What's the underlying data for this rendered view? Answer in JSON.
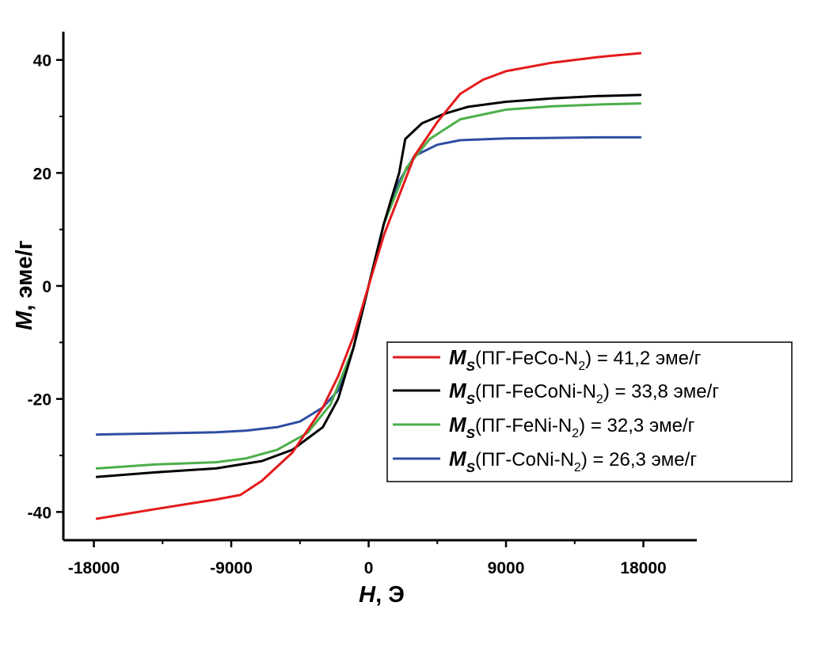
{
  "chart_data": {
    "type": "line",
    "title": "",
    "xlabel": {
      "var": "H",
      "unit": ", Э"
    },
    "ylabel": {
      "var": "M",
      "unit": ", эме/г"
    },
    "xlim": [
      -20000,
      21500
    ],
    "ylim": [
      -45,
      45
    ],
    "xticks": [
      -18000,
      -9000,
      0,
      9000,
      18000
    ],
    "xtick_labels": [
      "-18000",
      "-9000",
      "0",
      "9000",
      "18000"
    ],
    "yticks": [
      -40,
      -20,
      0,
      20,
      40
    ],
    "ytick_labels": [
      "-40",
      "-20",
      "0",
      "20",
      "40"
    ],
    "grid": false,
    "legend_position": "lower-right",
    "series": [
      {
        "color": "#e41a1c",
        "legend": {
          "ms": "M",
          "sub_s": "S",
          "pre": "(ПГ-FeCo-N",
          "sub": "2",
          "post": ") = 41,2 эме/г"
        },
        "x": [
          -17800,
          -14000,
          -10000,
          -8400,
          -7000,
          -5000,
          -3000,
          -2000,
          -1000,
          0,
          1000,
          2000,
          3000,
          4500,
          6000,
          7500,
          9000,
          12000,
          15000,
          17800
        ],
        "y": [
          -41.2,
          -39.5,
          -37.8,
          -37,
          -34.5,
          -29.5,
          -21.5,
          -16,
          -9,
          0,
          9,
          16,
          23,
          29,
          34,
          36.5,
          38,
          39.5,
          40.5,
          41.2
        ]
      },
      {
        "color": "#000000",
        "legend": {
          "ms": "M",
          "sub_s": "S",
          "pre": "(ПГ-FeCoNi-N",
          "sub": "2",
          "post": ") = 33,8 эме/г"
        },
        "x": [
          -17800,
          -14000,
          -10000,
          -7000,
          -5000,
          -3000,
          -2000,
          -1000,
          0,
          1000,
          2000,
          2400,
          3500,
          5000,
          6500,
          9000,
          12000,
          15000,
          17800
        ],
        "y": [
          -33.8,
          -33,
          -32.3,
          -31,
          -29,
          -25,
          -20,
          -11,
          0,
          11,
          20,
          26,
          28.8,
          30.5,
          31.7,
          32.6,
          33.2,
          33.6,
          33.8
        ]
      },
      {
        "color": "#4daf4a",
        "legend": {
          "ms": "M",
          "sub_s": "S",
          "pre": "(ПГ-FeNi-N",
          "sub": "2",
          "post": ") = 32,3 эме/г"
        },
        "x": [
          -17800,
          -14000,
          -10000,
          -8000,
          -6000,
          -4000,
          -2500,
          -1000,
          0,
          1000,
          2500,
          4000,
          6000,
          9000,
          12000,
          15000,
          17800
        ],
        "y": [
          -32.3,
          -31.6,
          -31.2,
          -30.5,
          -29,
          -26,
          -21,
          -11,
          0,
          11,
          21,
          26,
          29.5,
          31.2,
          31.8,
          32.1,
          32.3
        ]
      },
      {
        "color": "#2f4ea3",
        "legend": {
          "ms": "M",
          "sub_s": "S",
          "pre": "(ПГ-CoNi-N",
          "sub": "2",
          "post": ") = 26,3 эме/г"
        },
        "x": [
          -17800,
          -14000,
          -10000,
          -8000,
          -6000,
          -4500,
          -3000,
          -2000,
          -1000,
          0,
          1000,
          2000,
          3000,
          4500,
          6000,
          9000,
          12000,
          15000,
          17800
        ],
        "y": [
          -26.3,
          -26.1,
          -25.9,
          -25.6,
          -25,
          -24,
          -21.5,
          -18.5,
          -11,
          0,
          11,
          18.5,
          23,
          25,
          25.8,
          26.1,
          26.2,
          26.3,
          26.3
        ]
      }
    ]
  }
}
